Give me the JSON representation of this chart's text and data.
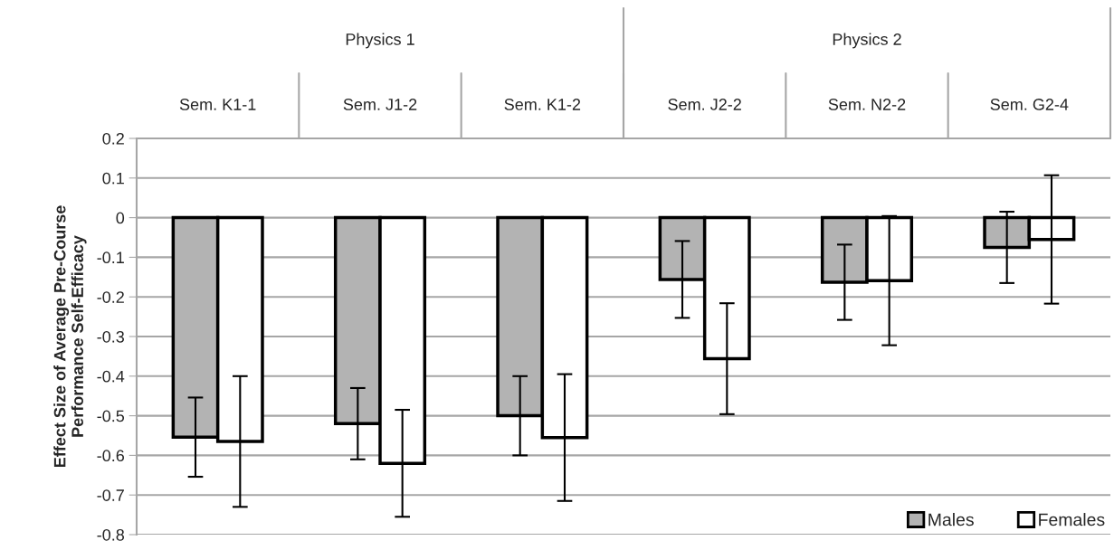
{
  "chart_data": {
    "type": "bar",
    "ylabel": "Effect Size of Average Pre-Course\nPerformance Self-Efficacy",
    "categories": [
      "Sem. K1-1",
      "Sem. J1-2",
      "Sem. K1-2",
      "Sem. J2-2",
      "Sem. N2-2",
      "Sem. G2-4"
    ],
    "annotations": [
      "Physics 1",
      "Physics 2"
    ],
    "series": [
      {
        "name": "Males",
        "color": "#b3b3b3",
        "values": [
          -0.554,
          -0.52,
          -0.5,
          -0.156,
          -0.163,
          -0.075
        ],
        "errors": [
          0.1,
          0.09,
          0.1,
          0.097,
          0.095,
          0.09
        ]
      },
      {
        "name": "Females",
        "color": "#ffffff",
        "values": [
          -0.565,
          -0.62,
          -0.555,
          -0.356,
          -0.159,
          -0.055
        ],
        "errors": [
          0.165,
          0.135,
          0.16,
          0.14,
          0.163,
          0.162
        ]
      }
    ],
    "ylim": [
      -0.8,
      0.2
    ],
    "yticks": [
      0.2,
      0.1,
      0,
      -0.1,
      -0.2,
      -0.3,
      -0.4,
      -0.5,
      -0.6,
      -0.7,
      -0.8
    ],
    "grid": "y",
    "legend": "bottom right"
  }
}
